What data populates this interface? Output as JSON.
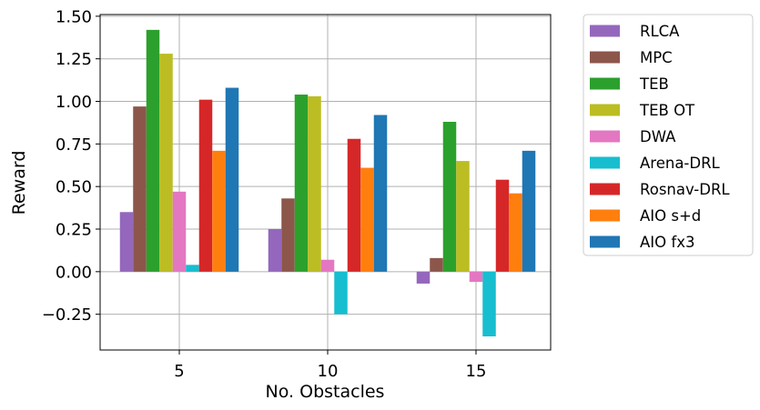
{
  "chart_data": {
    "type": "bar",
    "title": "",
    "xlabel": "No. Obstacles",
    "ylabel": "Reward",
    "categories": [
      "5",
      "10",
      "15"
    ],
    "ylim": [
      -0.46,
      1.51
    ],
    "yticks": [
      -0.25,
      0.0,
      0.25,
      0.5,
      0.75,
      1.0,
      1.25,
      1.5
    ],
    "ytick_labels": [
      "−0.25",
      "0.00",
      "0.25",
      "0.50",
      "0.75",
      "1.00",
      "1.25",
      "1.50"
    ],
    "grid": true,
    "legend_placement": "outside-right-top",
    "series": [
      {
        "name": "RLCA",
        "color": "#9467bd",
        "values": [
          0.35,
          0.25,
          -0.07
        ]
      },
      {
        "name": "MPC",
        "color": "#8c564b",
        "values": [
          0.97,
          0.43,
          0.08
        ]
      },
      {
        "name": "TEB",
        "color": "#2ca02c",
        "values": [
          1.42,
          1.04,
          0.88
        ]
      },
      {
        "name": "TEB OT",
        "color": "#bcbd22",
        "values": [
          1.28,
          1.03,
          0.65
        ]
      },
      {
        "name": "DWA",
        "color": "#e377c2",
        "values": [
          0.47,
          0.07,
          -0.06
        ]
      },
      {
        "name": "Arena-DRL",
        "color": "#17becf",
        "values": [
          0.04,
          -0.25,
          -0.38
        ]
      },
      {
        "name": "Rosnav-DRL",
        "color": "#d62728",
        "values": [
          1.01,
          0.78,
          0.54
        ]
      },
      {
        "name": "AIO s+d",
        "color": "#ff7f0e",
        "values": [
          0.71,
          0.61,
          0.46
        ]
      },
      {
        "name": "AIO fx3",
        "color": "#1f77b4",
        "values": [
          1.08,
          0.92,
          0.71
        ]
      }
    ]
  }
}
